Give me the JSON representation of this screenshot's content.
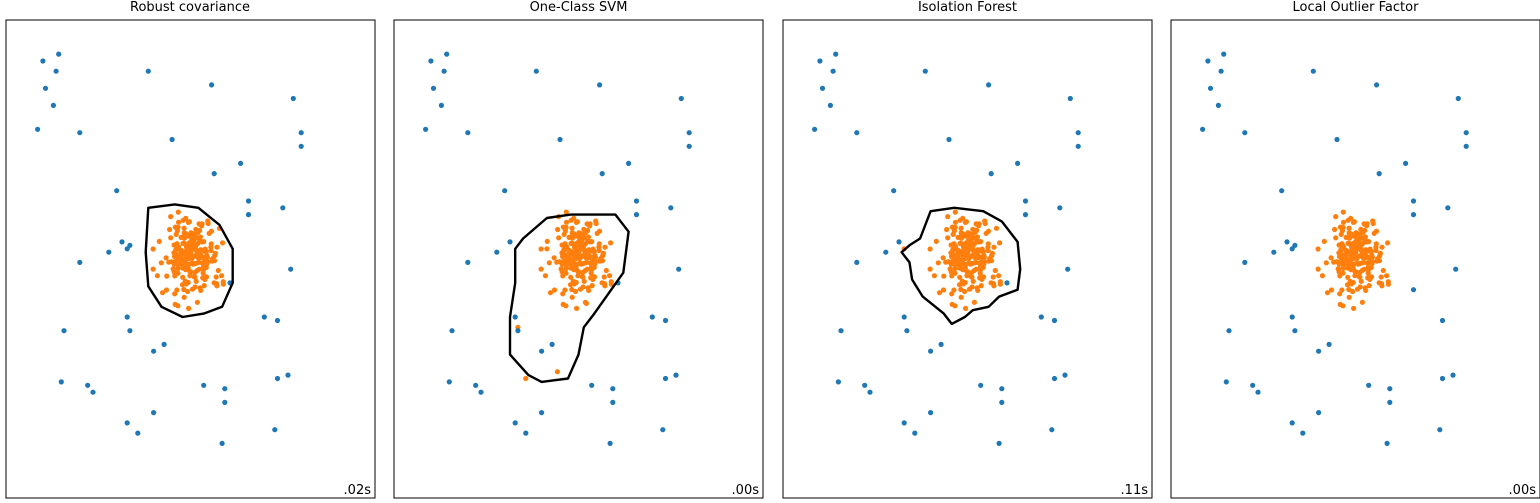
{
  "colors": {
    "inlier": "#ff7f0e",
    "outlier": "#1f77b4",
    "frame": "#000000",
    "contour": "#000000"
  },
  "chart_data": [
    {
      "type": "scatter",
      "title": "Robust covariance",
      "timing": ".02s",
      "xlim": [
        -7,
        7
      ],
      "ylim": [
        -7,
        7
      ],
      "grid": false,
      "legend": "none",
      "decision_contour": "ellipse around central cluster",
      "contour_polygon": [
        [
          -1.6,
          1.5
        ],
        [
          -0.6,
          1.6
        ],
        [
          0.3,
          1.5
        ],
        [
          1.1,
          1.0
        ],
        [
          1.6,
          0.3
        ],
        [
          1.6,
          -0.7
        ],
        [
          1.2,
          -1.4
        ],
        [
          0.5,
          -1.6
        ],
        [
          -0.3,
          -1.7
        ],
        [
          -1.1,
          -1.4
        ],
        [
          -1.6,
          -0.8
        ],
        [
          -1.7,
          0.2
        ]
      ],
      "series": [
        {
          "values": [
            [
              -0.9,
              -0.5
            ],
            [
              1.1,
              0.9
            ],
            [
              -0.2,
              -0.3
            ]
          ]
        },
        {
          "values": [
            [
              -5.6,
              5.8
            ],
            [
              -5.0,
              6.0
            ],
            [
              -5.1,
              5.5
            ],
            [
              -5.5,
              5.0
            ],
            [
              -5.2,
              4.5
            ],
            [
              -5.8,
              3.8
            ],
            [
              -4.2,
              3.7
            ],
            [
              -1.6,
              5.5
            ],
            [
              0.8,
              5.1
            ],
            [
              3.9,
              4.7
            ],
            [
              4.2,
              3.7
            ],
            [
              4.2,
              3.3
            ],
            [
              -0.7,
              3.5
            ],
            [
              0.9,
              2.5
            ],
            [
              1.9,
              2.8
            ],
            [
              -2.8,
              2.0
            ],
            [
              2.2,
              1.7
            ],
            [
              2.2,
              1.3
            ],
            [
              3.5,
              1.5
            ],
            [
              -2.6,
              0.5
            ],
            [
              -2.3,
              0.4
            ],
            [
              -2.4,
              0.3
            ],
            [
              -3.1,
              0.2
            ],
            [
              -4.2,
              -0.1
            ],
            [
              3.8,
              -0.3
            ],
            [
              -4.8,
              -2.1
            ],
            [
              -2.4,
              -1.7
            ],
            [
              -2.3,
              -2.1
            ],
            [
              -1.4,
              -2.7
            ],
            [
              -1.0,
              -2.5
            ],
            [
              2.8,
              -1.7
            ],
            [
              1.5,
              -0.7
            ],
            [
              3.3,
              -1.8
            ],
            [
              -4.9,
              -3.6
            ],
            [
              -3.9,
              -3.7
            ],
            [
              -3.7,
              -3.9
            ],
            [
              -1.4,
              -4.5
            ],
            [
              -2.4,
              -4.8
            ],
            [
              -2.0,
              -5.1
            ],
            [
              0.5,
              -3.7
            ],
            [
              1.3,
              -3.8
            ],
            [
              1.3,
              -4.2
            ],
            [
              3.3,
              -3.5
            ],
            [
              3.7,
              -3.4
            ],
            [
              1.2,
              -5.4
            ],
            [
              3.2,
              -5.0
            ]
          ]
        }
      ]
    },
    {
      "type": "scatter",
      "title": "One-Class SVM",
      "timing": ".00s",
      "xlim": [
        -7,
        7
      ],
      "ylim": [
        -7,
        7
      ],
      "grid": false,
      "legend": "none",
      "decision_contour": "irregular boundary skewed lower-left",
      "contour_polygon": [
        [
          -1.2,
          1.2
        ],
        [
          -0.3,
          1.3
        ],
        [
          1.4,
          1.3
        ],
        [
          1.9,
          0.8
        ],
        [
          1.7,
          -0.4
        ],
        [
          0.6,
          -1.6
        ],
        [
          0.2,
          -2.0
        ],
        [
          0.0,
          -2.8
        ],
        [
          -0.4,
          -3.5
        ],
        [
          -1.4,
          -3.6
        ],
        [
          -1.9,
          -3.4
        ],
        [
          -2.6,
          -2.8
        ],
        [
          -2.6,
          -1.7
        ],
        [
          -2.4,
          -0.7
        ],
        [
          -2.4,
          0.3
        ],
        [
          -2.1,
          0.6
        ]
      ],
      "series": [
        {
          "values": [
            [
              -1.2,
              0.3
            ],
            [
              -2.3,
              -2.0
            ],
            [
              -2.0,
              -3.5
            ],
            [
              -0.8,
              -3.3
            ],
            [
              0.3,
              -1.3
            ]
          ]
        },
        {
          "values": [
            [
              -5.6,
              5.8
            ],
            [
              -5.0,
              6.0
            ],
            [
              -5.1,
              5.5
            ],
            [
              -5.5,
              5.0
            ],
            [
              -5.2,
              4.5
            ],
            [
              -5.8,
              3.8
            ],
            [
              -4.2,
              3.7
            ],
            [
              -1.6,
              5.5
            ],
            [
              0.8,
              5.1
            ],
            [
              3.9,
              4.7
            ],
            [
              4.2,
              3.7
            ],
            [
              4.2,
              3.3
            ],
            [
              -0.7,
              3.5
            ],
            [
              0.9,
              2.5
            ],
            [
              1.9,
              2.8
            ],
            [
              -2.8,
              2.0
            ],
            [
              2.2,
              1.7
            ],
            [
              2.2,
              1.3
            ],
            [
              3.5,
              1.5
            ],
            [
              -2.6,
              0.5
            ],
            [
              -3.1,
              0.2
            ],
            [
              -4.2,
              -0.1
            ],
            [
              3.8,
              -0.3
            ],
            [
              -4.8,
              -2.1
            ],
            [
              -2.4,
              -1.7
            ],
            [
              -2.3,
              -2.1
            ],
            [
              -1.4,
              -2.7
            ],
            [
              -1.0,
              -2.5
            ],
            [
              2.8,
              -1.7
            ],
            [
              1.5,
              -0.7
            ],
            [
              3.3,
              -1.8
            ],
            [
              -4.9,
              -3.6
            ],
            [
              -3.9,
              -3.7
            ],
            [
              -3.7,
              -3.9
            ],
            [
              -1.4,
              -4.5
            ],
            [
              -2.4,
              -4.8
            ],
            [
              -2.0,
              -5.1
            ],
            [
              0.5,
              -3.7
            ],
            [
              1.3,
              -3.8
            ],
            [
              1.3,
              -4.2
            ],
            [
              3.3,
              -3.5
            ],
            [
              3.7,
              -3.4
            ],
            [
              1.2,
              -5.4
            ],
            [
              3.2,
              -5.0
            ]
          ]
        }
      ]
    },
    {
      "type": "scatter",
      "title": "Isolation Forest",
      "timing": ".11s",
      "xlim": [
        -7,
        7
      ],
      "ylim": [
        -7,
        7
      ],
      "grid": false,
      "legend": "none",
      "decision_contour": "irregular boundary around cluster with left protrusion",
      "contour_polygon": [
        [
          -1.4,
          1.4
        ],
        [
          -0.5,
          1.5
        ],
        [
          0.6,
          1.4
        ],
        [
          1.3,
          1.1
        ],
        [
          1.9,
          0.5
        ],
        [
          2.0,
          -0.3
        ],
        [
          1.9,
          -0.9
        ],
        [
          1.2,
          -1.1
        ],
        [
          0.8,
          -1.4
        ],
        [
          0.2,
          -1.5
        ],
        [
          -0.1,
          -1.7
        ],
        [
          -0.6,
          -1.9
        ],
        [
          -0.9,
          -1.6
        ],
        [
          -1.7,
          -1.1
        ],
        [
          -2.1,
          -0.6
        ],
        [
          -2.2,
          -0.1
        ],
        [
          -2.5,
          0.2
        ],
        [
          -2.2,
          0.4
        ],
        [
          -1.8,
          0.6
        ]
      ],
      "series": [
        {
          "values": [
            [
              -0.9,
              -0.5
            ],
            [
              1.1,
              0.9
            ],
            [
              -0.2,
              -0.3
            ],
            [
              -2.4,
              0.3
            ]
          ]
        },
        {
          "values": [
            [
              -5.6,
              5.8
            ],
            [
              -5.0,
              6.0
            ],
            [
              -5.1,
              5.5
            ],
            [
              -5.5,
              5.0
            ],
            [
              -5.2,
              4.5
            ],
            [
              -5.8,
              3.8
            ],
            [
              -4.2,
              3.7
            ],
            [
              -1.6,
              5.5
            ],
            [
              0.8,
              5.1
            ],
            [
              3.9,
              4.7
            ],
            [
              4.2,
              3.7
            ],
            [
              4.2,
              3.3
            ],
            [
              -0.7,
              3.5
            ],
            [
              0.9,
              2.5
            ],
            [
              1.9,
              2.8
            ],
            [
              -2.8,
              2.0
            ],
            [
              2.2,
              1.7
            ],
            [
              2.2,
              1.3
            ],
            [
              3.5,
              1.5
            ],
            [
              -2.6,
              0.5
            ],
            [
              -3.1,
              0.2
            ],
            [
              -4.2,
              -0.1
            ],
            [
              3.8,
              -0.3
            ],
            [
              -4.8,
              -2.1
            ],
            [
              -2.4,
              -1.7
            ],
            [
              -2.3,
              -2.1
            ],
            [
              -1.4,
              -2.7
            ],
            [
              -1.0,
              -2.5
            ],
            [
              2.8,
              -1.7
            ],
            [
              1.5,
              -0.7
            ],
            [
              3.3,
              -1.8
            ],
            [
              -4.9,
              -3.6
            ],
            [
              -3.9,
              -3.7
            ],
            [
              -3.7,
              -3.9
            ],
            [
              -1.4,
              -4.5
            ],
            [
              -2.4,
              -4.8
            ],
            [
              -2.0,
              -5.1
            ],
            [
              0.5,
              -3.7
            ],
            [
              1.3,
              -3.8
            ],
            [
              1.3,
              -4.2
            ],
            [
              3.3,
              -3.5
            ],
            [
              3.7,
              -3.4
            ],
            [
              1.2,
              -5.4
            ],
            [
              3.2,
              -5.0
            ]
          ]
        }
      ]
    },
    {
      "type": "scatter",
      "title": "Local Outlier Factor",
      "timing": ".00s",
      "xlim": [
        -7,
        7
      ],
      "ylim": [
        -7,
        7
      ],
      "grid": false,
      "legend": "none",
      "decision_contour": "none",
      "contour_polygon": [],
      "series": [
        {
          "values": []
        },
        {
          "values": [
            [
              -5.6,
              5.8
            ],
            [
              -5.0,
              6.0
            ],
            [
              -5.1,
              5.5
            ],
            [
              -5.5,
              5.0
            ],
            [
              -5.2,
              4.5
            ],
            [
              -5.8,
              3.8
            ],
            [
              -4.2,
              3.7
            ],
            [
              -1.6,
              5.5
            ],
            [
              0.8,
              5.1
            ],
            [
              3.9,
              4.7
            ],
            [
              4.2,
              3.7
            ],
            [
              4.2,
              3.3
            ],
            [
              -0.7,
              3.5
            ],
            [
              0.9,
              2.5
            ],
            [
              1.9,
              2.8
            ],
            [
              -2.8,
              2.0
            ],
            [
              2.2,
              1.7
            ],
            [
              2.2,
              1.3
            ],
            [
              3.5,
              1.5
            ],
            [
              -2.6,
              0.5
            ],
            [
              -2.3,
              0.4
            ],
            [
              -2.4,
              0.3
            ],
            [
              -3.1,
              0.2
            ],
            [
              -4.2,
              -0.1
            ],
            [
              3.8,
              -0.3
            ],
            [
              2.2,
              -0.9
            ],
            [
              -4.8,
              -2.1
            ],
            [
              -2.4,
              -1.7
            ],
            [
              -2.3,
              -2.1
            ],
            [
              -1.4,
              -2.7
            ],
            [
              -1.0,
              -2.5
            ],
            [
              3.3,
              -1.8
            ],
            [
              -4.9,
              -3.6
            ],
            [
              -3.9,
              -3.7
            ],
            [
              -3.7,
              -3.9
            ],
            [
              -1.4,
              -4.5
            ],
            [
              -2.4,
              -4.8
            ],
            [
              -2.0,
              -5.1
            ],
            [
              0.5,
              -3.7
            ],
            [
              1.3,
              -3.8
            ],
            [
              1.3,
              -4.2
            ],
            [
              3.3,
              -3.5
            ],
            [
              3.7,
              -3.4
            ],
            [
              1.2,
              -5.4
            ],
            [
              3.2,
              -5.0
            ]
          ]
        }
      ]
    }
  ]
}
